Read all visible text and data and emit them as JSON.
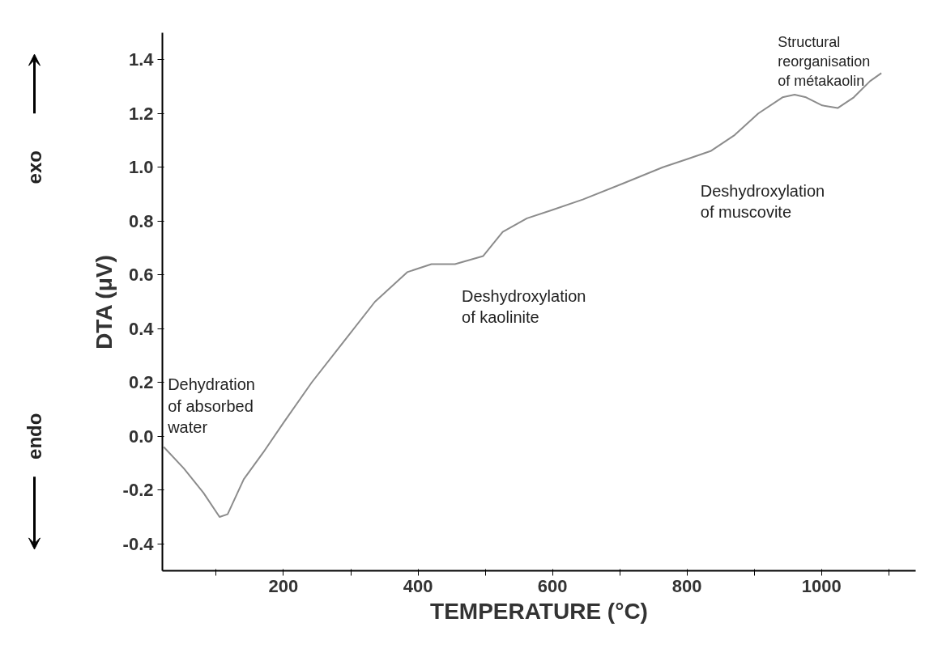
{
  "chart_data": {
    "type": "line",
    "xlabel": "TEMPERATURE (°C)",
    "ylabel": "DTA (μV)",
    "x": [
      22,
      52,
      81,
      105,
      117,
      141,
      170,
      200,
      242,
      289,
      336,
      384,
      420,
      455,
      497,
      526,
      562,
      598,
      645,
      705,
      764,
      800,
      835,
      871,
      906,
      942,
      960,
      977,
      1001,
      1024,
      1048,
      1072,
      1089
    ],
    "series": [
      {
        "color": "#8c8c8c",
        "values": [
          -0.04,
          -0.12,
          -0.21,
          -0.3,
          -0.29,
          -0.16,
          -0.06,
          0.05,
          0.2,
          0.35,
          0.5,
          0.61,
          0.64,
          0.64,
          0.67,
          0.76,
          0.81,
          0.84,
          0.88,
          0.94,
          1.0,
          1.03,
          1.06,
          1.12,
          1.2,
          1.26,
          1.27,
          1.26,
          1.23,
          1.22,
          1.26,
          1.32,
          1.35
        ]
      }
    ],
    "xlim": [
      20,
      1140
    ],
    "ylim": [
      -0.5,
      1.5
    ],
    "xticks": [
      {
        "value": 100,
        "label": null
      },
      200,
      {
        "value": 300,
        "label": null
      },
      400,
      {
        "value": 500,
        "label": null
      },
      600,
      {
        "value": 700,
        "label": null
      },
      800,
      {
        "value": 900,
        "label": null
      },
      1000,
      {
        "value": 1100,
        "label": null
      }
    ],
    "yticks": [
      {
        "value": -0.4,
        "label": "-0.4"
      },
      {
        "value": -0.2,
        "label": "-0.2"
      },
      {
        "value": 0,
        "label": "0.0"
      },
      0.2,
      0.4,
      0.6,
      0.8,
      {
        "value": 1,
        "label": "1.0"
      },
      1.2,
      1.4
    ],
    "annotations": [
      "Dehydration\nof absorbed\nwater",
      "Deshydroxylation\nof kaolinite",
      "Deshydroxylation\nof muscovite",
      "Structural\nreorganisation\nof métakaolin",
      "exo",
      "endo"
    ],
    "grid": false,
    "marker": "none",
    "line_style": "solid"
  }
}
